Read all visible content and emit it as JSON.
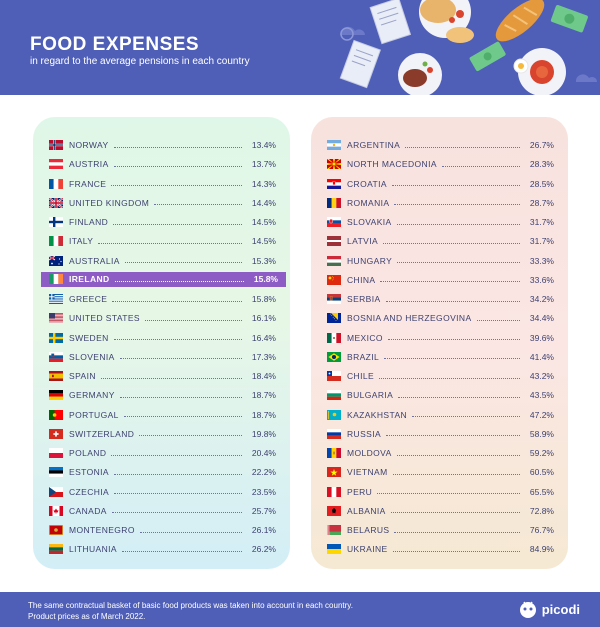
{
  "header": {
    "title": "FOOD EXPENSES",
    "subtitle": "in regard to the average pensions in each country"
  },
  "footer": {
    "note_line1": "The same contractual basket of basic food products was taken into account in each country.",
    "note_line2": "Product prices as of March 2022.",
    "brand": "picodi"
  },
  "colors": {
    "header_bg": "#4f5fb8",
    "highlight": "#8e5cc5",
    "text": "#3d4170"
  },
  "chart_data": {
    "type": "table",
    "highlighted": "IRELAND",
    "left_column": [
      {
        "country": "NORWAY",
        "value": "13.4%",
        "flag": "norway-flag"
      },
      {
        "country": "AUSTRIA",
        "value": "13.7%",
        "flag": "austria-flag"
      },
      {
        "country": "FRANCE",
        "value": "14.3%",
        "flag": "france-flag"
      },
      {
        "country": "UNITED KINGDOM",
        "value": "14.4%",
        "flag": "uk-flag"
      },
      {
        "country": "FINLAND",
        "value": "14.5%",
        "flag": "finland-flag"
      },
      {
        "country": "ITALY",
        "value": "14.5%",
        "flag": "italy-flag"
      },
      {
        "country": "AUSTRALIA",
        "value": "15.3%",
        "flag": "australia-flag"
      },
      {
        "country": "IRELAND",
        "value": "15.8%",
        "flag": "ireland-flag"
      },
      {
        "country": "GREECE",
        "value": "15.8%",
        "flag": "greece-flag"
      },
      {
        "country": "UNITED STATES",
        "value": "16.1%",
        "flag": "usa-flag"
      },
      {
        "country": "SWEDEN",
        "value": "16.4%",
        "flag": "sweden-flag"
      },
      {
        "country": "SLOVENIA",
        "value": "17.3%",
        "flag": "slovenia-flag"
      },
      {
        "country": "SPAIN",
        "value": "18.4%",
        "flag": "spain-flag"
      },
      {
        "country": "GERMANY",
        "value": "18.7%",
        "flag": "germany-flag"
      },
      {
        "country": "PORTUGAL",
        "value": "18.7%",
        "flag": "portugal-flag"
      },
      {
        "country": "SWITZERLAND",
        "value": "19.8%",
        "flag": "switzerland-flag"
      },
      {
        "country": "POLAND",
        "value": "20.4%",
        "flag": "poland-flag"
      },
      {
        "country": "ESTONIA",
        "value": "22.2%",
        "flag": "estonia-flag"
      },
      {
        "country": "CZECHIA",
        "value": "23.5%",
        "flag": "czechia-flag"
      },
      {
        "country": "CANADA",
        "value": "25.7%",
        "flag": "canada-flag"
      },
      {
        "country": "MONTENEGRO",
        "value": "26.1%",
        "flag": "montenegro-flag"
      },
      {
        "country": "LITHUANIA",
        "value": "26.2%",
        "flag": "lithuania-flag"
      }
    ],
    "right_column": [
      {
        "country": "ARGENTINA",
        "value": "26.7%",
        "flag": "argentina-flag"
      },
      {
        "country": "NORTH MACEDONIA",
        "value": "28.3%",
        "flag": "north-macedonia-flag"
      },
      {
        "country": "CROATIA",
        "value": "28.5%",
        "flag": "croatia-flag"
      },
      {
        "country": "ROMANIA",
        "value": "28.7%",
        "flag": "romania-flag"
      },
      {
        "country": "SLOVAKIA",
        "value": "31.7%",
        "flag": "slovakia-flag"
      },
      {
        "country": "LATVIA",
        "value": "31.7%",
        "flag": "latvia-flag"
      },
      {
        "country": "HUNGARY",
        "value": "33.3%",
        "flag": "hungary-flag"
      },
      {
        "country": "CHINA",
        "value": "33.6%",
        "flag": "china-flag"
      },
      {
        "country": "SERBIA",
        "value": "34.2%",
        "flag": "serbia-flag"
      },
      {
        "country": "BOSNIA AND HERZEGOVINA",
        "value": "34.4%",
        "flag": "bosnia-flag"
      },
      {
        "country": "MEXICO",
        "value": "39.6%",
        "flag": "mexico-flag"
      },
      {
        "country": "BRAZIL",
        "value": "41.4%",
        "flag": "brazil-flag"
      },
      {
        "country": "CHILE",
        "value": "43.2%",
        "flag": "chile-flag"
      },
      {
        "country": "BULGARIA",
        "value": "43.5%",
        "flag": "bulgaria-flag"
      },
      {
        "country": "KAZAKHSTAN",
        "value": "47.2%",
        "flag": "kazakhstan-flag"
      },
      {
        "country": "RUSSIA",
        "value": "58.9%",
        "flag": "russia-flag"
      },
      {
        "country": "MOLDOVA",
        "value": "59.2%",
        "flag": "moldova-flag"
      },
      {
        "country": "VIETNAM",
        "value": "60.5%",
        "flag": "vietnam-flag"
      },
      {
        "country": "PERU",
        "value": "65.5%",
        "flag": "peru-flag"
      },
      {
        "country": "ALBANIA",
        "value": "72.8%",
        "flag": "albania-flag"
      },
      {
        "country": "BELARUS",
        "value": "76.7%",
        "flag": "belarus-flag"
      },
      {
        "country": "UKRAINE",
        "value": "84.9%",
        "flag": "ukraine-flag"
      }
    ]
  }
}
